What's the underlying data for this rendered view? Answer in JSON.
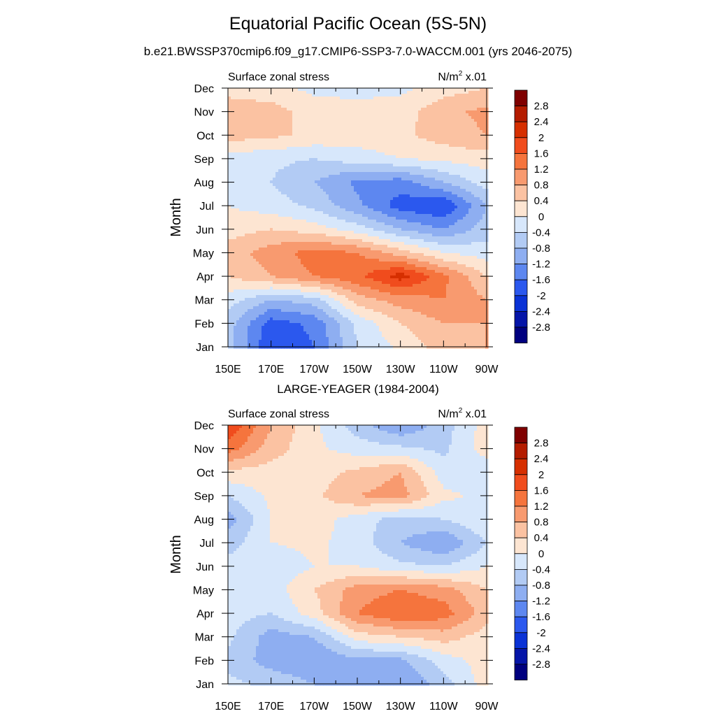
{
  "figure": {
    "title": "Equatorial Pacific Ocean (5S-5N)",
    "subtitle": "b.e21.BWSSP370cmip6.f09_g17.CMIP6-SSP3-7.0-WACCM.001 (yrs 2046-2075)",
    "panel2_title": "LARGE-YEAGER (1984-2004)"
  },
  "chart_data": [
    {
      "type": "heatmap",
      "title": "b.e21.BWSSP370cmip6.f09_g17.CMIP6-SSP3-7.0-WACCM.001 (yrs 2046-2075)",
      "left_label": "Surface zonal stress",
      "units_base": "N/m",
      "units_sup": "2",
      "units_suffix": " x.01",
      "ylabel": "Month",
      "x": [
        "150E",
        "170E",
        "170W",
        "150W",
        "130W",
        "110W",
        "90W"
      ],
      "y": [
        "Jan",
        "Feb",
        "Mar",
        "Apr",
        "May",
        "Jun",
        "Jul",
        "Aug",
        "Sep",
        "Oct",
        "Nov",
        "Dec"
      ],
      "z": [
        [
          -0.6,
          -2.0,
          -1.6,
          -0.4,
          0.1,
          0.6,
          0.8
        ],
        [
          -0.6,
          -1.8,
          -1.5,
          -0.3,
          0.4,
          0.8,
          0.8
        ],
        [
          -0.2,
          -0.8,
          -0.6,
          0.6,
          1.0,
          1.2,
          0.8
        ],
        [
          0.4,
          0.8,
          1.2,
          1.5,
          2.2,
          1.3,
          0.4
        ],
        [
          0.6,
          1.0,
          1.4,
          1.2,
          0.6,
          0.0,
          -0.2
        ],
        [
          0.2,
          0.4,
          0.2,
          -0.2,
          -0.8,
          -1.2,
          -0.6
        ],
        [
          0.0,
          -0.2,
          -0.5,
          -1.1,
          -1.8,
          -2.0,
          -0.8
        ],
        [
          -0.1,
          -0.4,
          -0.8,
          -1.3,
          -1.4,
          -0.8,
          -0.2
        ],
        [
          -0.2,
          -0.3,
          -0.4,
          -0.2,
          0.0,
          0.1,
          0.2
        ],
        [
          0.6,
          0.5,
          0.3,
          0.2,
          0.3,
          0.6,
          0.8
        ],
        [
          0.7,
          0.6,
          0.2,
          0.1,
          0.2,
          0.7,
          0.9
        ],
        [
          0.2,
          0.1,
          -0.1,
          -0.1,
          -0.1,
          0.2,
          0.4
        ]
      ]
    },
    {
      "type": "heatmap",
      "title": "LARGE-YEAGER (1984-2004)",
      "left_label": "Surface zonal stress",
      "units_base": "N/m",
      "units_sup": "2",
      "units_suffix": " x.01",
      "ylabel": "Month",
      "x": [
        "150E",
        "170E",
        "170W",
        "150W",
        "130W",
        "110W",
        "90W"
      ],
      "y": [
        "Jan",
        "Feb",
        "Mar",
        "Apr",
        "May",
        "Jun",
        "Jul",
        "Aug",
        "Sep",
        "Oct",
        "Nov",
        "Dec"
      ],
      "z": [
        [
          -0.3,
          -0.5,
          -0.8,
          -1.0,
          -1.2,
          -0.6,
          0.2
        ],
        [
          -0.5,
          -1.0,
          -1.2,
          -0.9,
          -0.9,
          -0.2,
          0.2
        ],
        [
          -0.3,
          -1.0,
          -0.8,
          0.2,
          0.4,
          0.6,
          0.2
        ],
        [
          -0.2,
          -0.4,
          0.2,
          1.2,
          1.6,
          1.4,
          0.6
        ],
        [
          -0.2,
          -0.2,
          0.4,
          1.0,
          1.2,
          1.0,
          0.4
        ],
        [
          -0.2,
          -0.3,
          0.0,
          0.0,
          -0.3,
          -0.4,
          0.0
        ],
        [
          -0.6,
          0.0,
          0.1,
          -0.2,
          -0.8,
          -1.2,
          -0.4
        ],
        [
          -1.0,
          0.0,
          0.2,
          -0.2,
          -0.6,
          -0.4,
          0.0
        ],
        [
          -0.4,
          0.1,
          0.3,
          0.8,
          1.0,
          0.1,
          -0.1
        ],
        [
          0.3,
          0.2,
          0.2,
          0.5,
          0.8,
          -0.2,
          -0.3
        ],
        [
          1.4,
          0.6,
          0.1,
          -0.2,
          -0.3,
          -0.5,
          0.2
        ],
        [
          2.0,
          0.8,
          0.1,
          -0.6,
          -1.2,
          -0.6,
          0.2
        ]
      ]
    }
  ],
  "colorbar": {
    "labels": [
      "2.8",
      "2.4",
      "2",
      "1.6",
      "1.2",
      "0.8",
      "0.4",
      "0",
      "-0.4",
      "-0.8",
      "-1.2",
      "-1.6",
      "-2",
      "-2.4",
      "-2.8"
    ],
    "colors": [
      "#7f0000",
      "#b41c00",
      "#d62f00",
      "#f04c1d",
      "#f5743d",
      "#f89a6f",
      "#fbc2a2",
      "#fde5d2",
      "#d7e7fb",
      "#b2cbf4",
      "#8eaef1",
      "#5d87f0",
      "#2b58ee",
      "#0a32d6",
      "#0515a8",
      "#00007f"
    ]
  }
}
